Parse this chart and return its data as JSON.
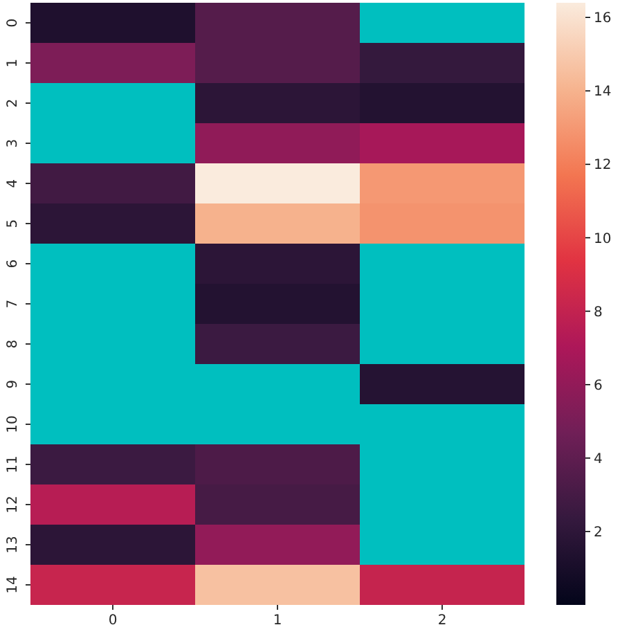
{
  "chart_data": {
    "type": "heatmap",
    "categories": [
      "0",
      "1",
      "2"
    ],
    "y_categories": [
      "0",
      "1",
      "2",
      "3",
      "4",
      "5",
      "6",
      "7",
      "8",
      "9",
      "10",
      "11",
      "12",
      "13",
      "14"
    ],
    "cells": [
      [
        1.3,
        3.6,
        null
      ],
      [
        5.2,
        3.6,
        2.3
      ],
      [
        null,
        1.9,
        1.5
      ],
      [
        null,
        5.9,
        6.8
      ],
      [
        2.8,
        16.4,
        13.0
      ],
      [
        1.9,
        14.0,
        12.8
      ],
      [
        null,
        1.9,
        null
      ],
      [
        null,
        1.5,
        null
      ],
      [
        null,
        2.6,
        null
      ],
      [
        null,
        null,
        1.6
      ],
      [
        null,
        null,
        null
      ],
      [
        2.6,
        3.3,
        null
      ],
      [
        7.5,
        3.0,
        null
      ],
      [
        1.9,
        6.0,
        null
      ],
      [
        8.2,
        14.6,
        8.1
      ]
    ],
    "clim": [
      0,
      16.4
    ],
    "cticks": [
      2,
      4,
      6,
      8,
      10,
      12,
      14,
      16
    ]
  }
}
